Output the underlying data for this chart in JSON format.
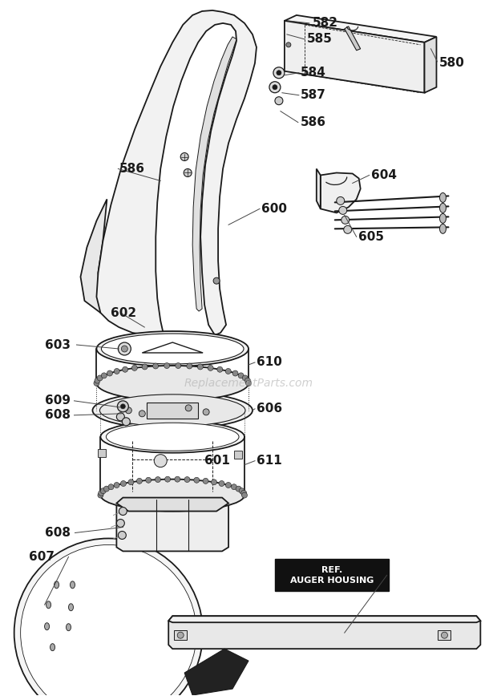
{
  "bg_color": "#ffffff",
  "line_color": "#1a1a1a",
  "watermark": "ReplacementParts.com",
  "figsize": [
    6.2,
    8.68
  ],
  "dpi": 100
}
